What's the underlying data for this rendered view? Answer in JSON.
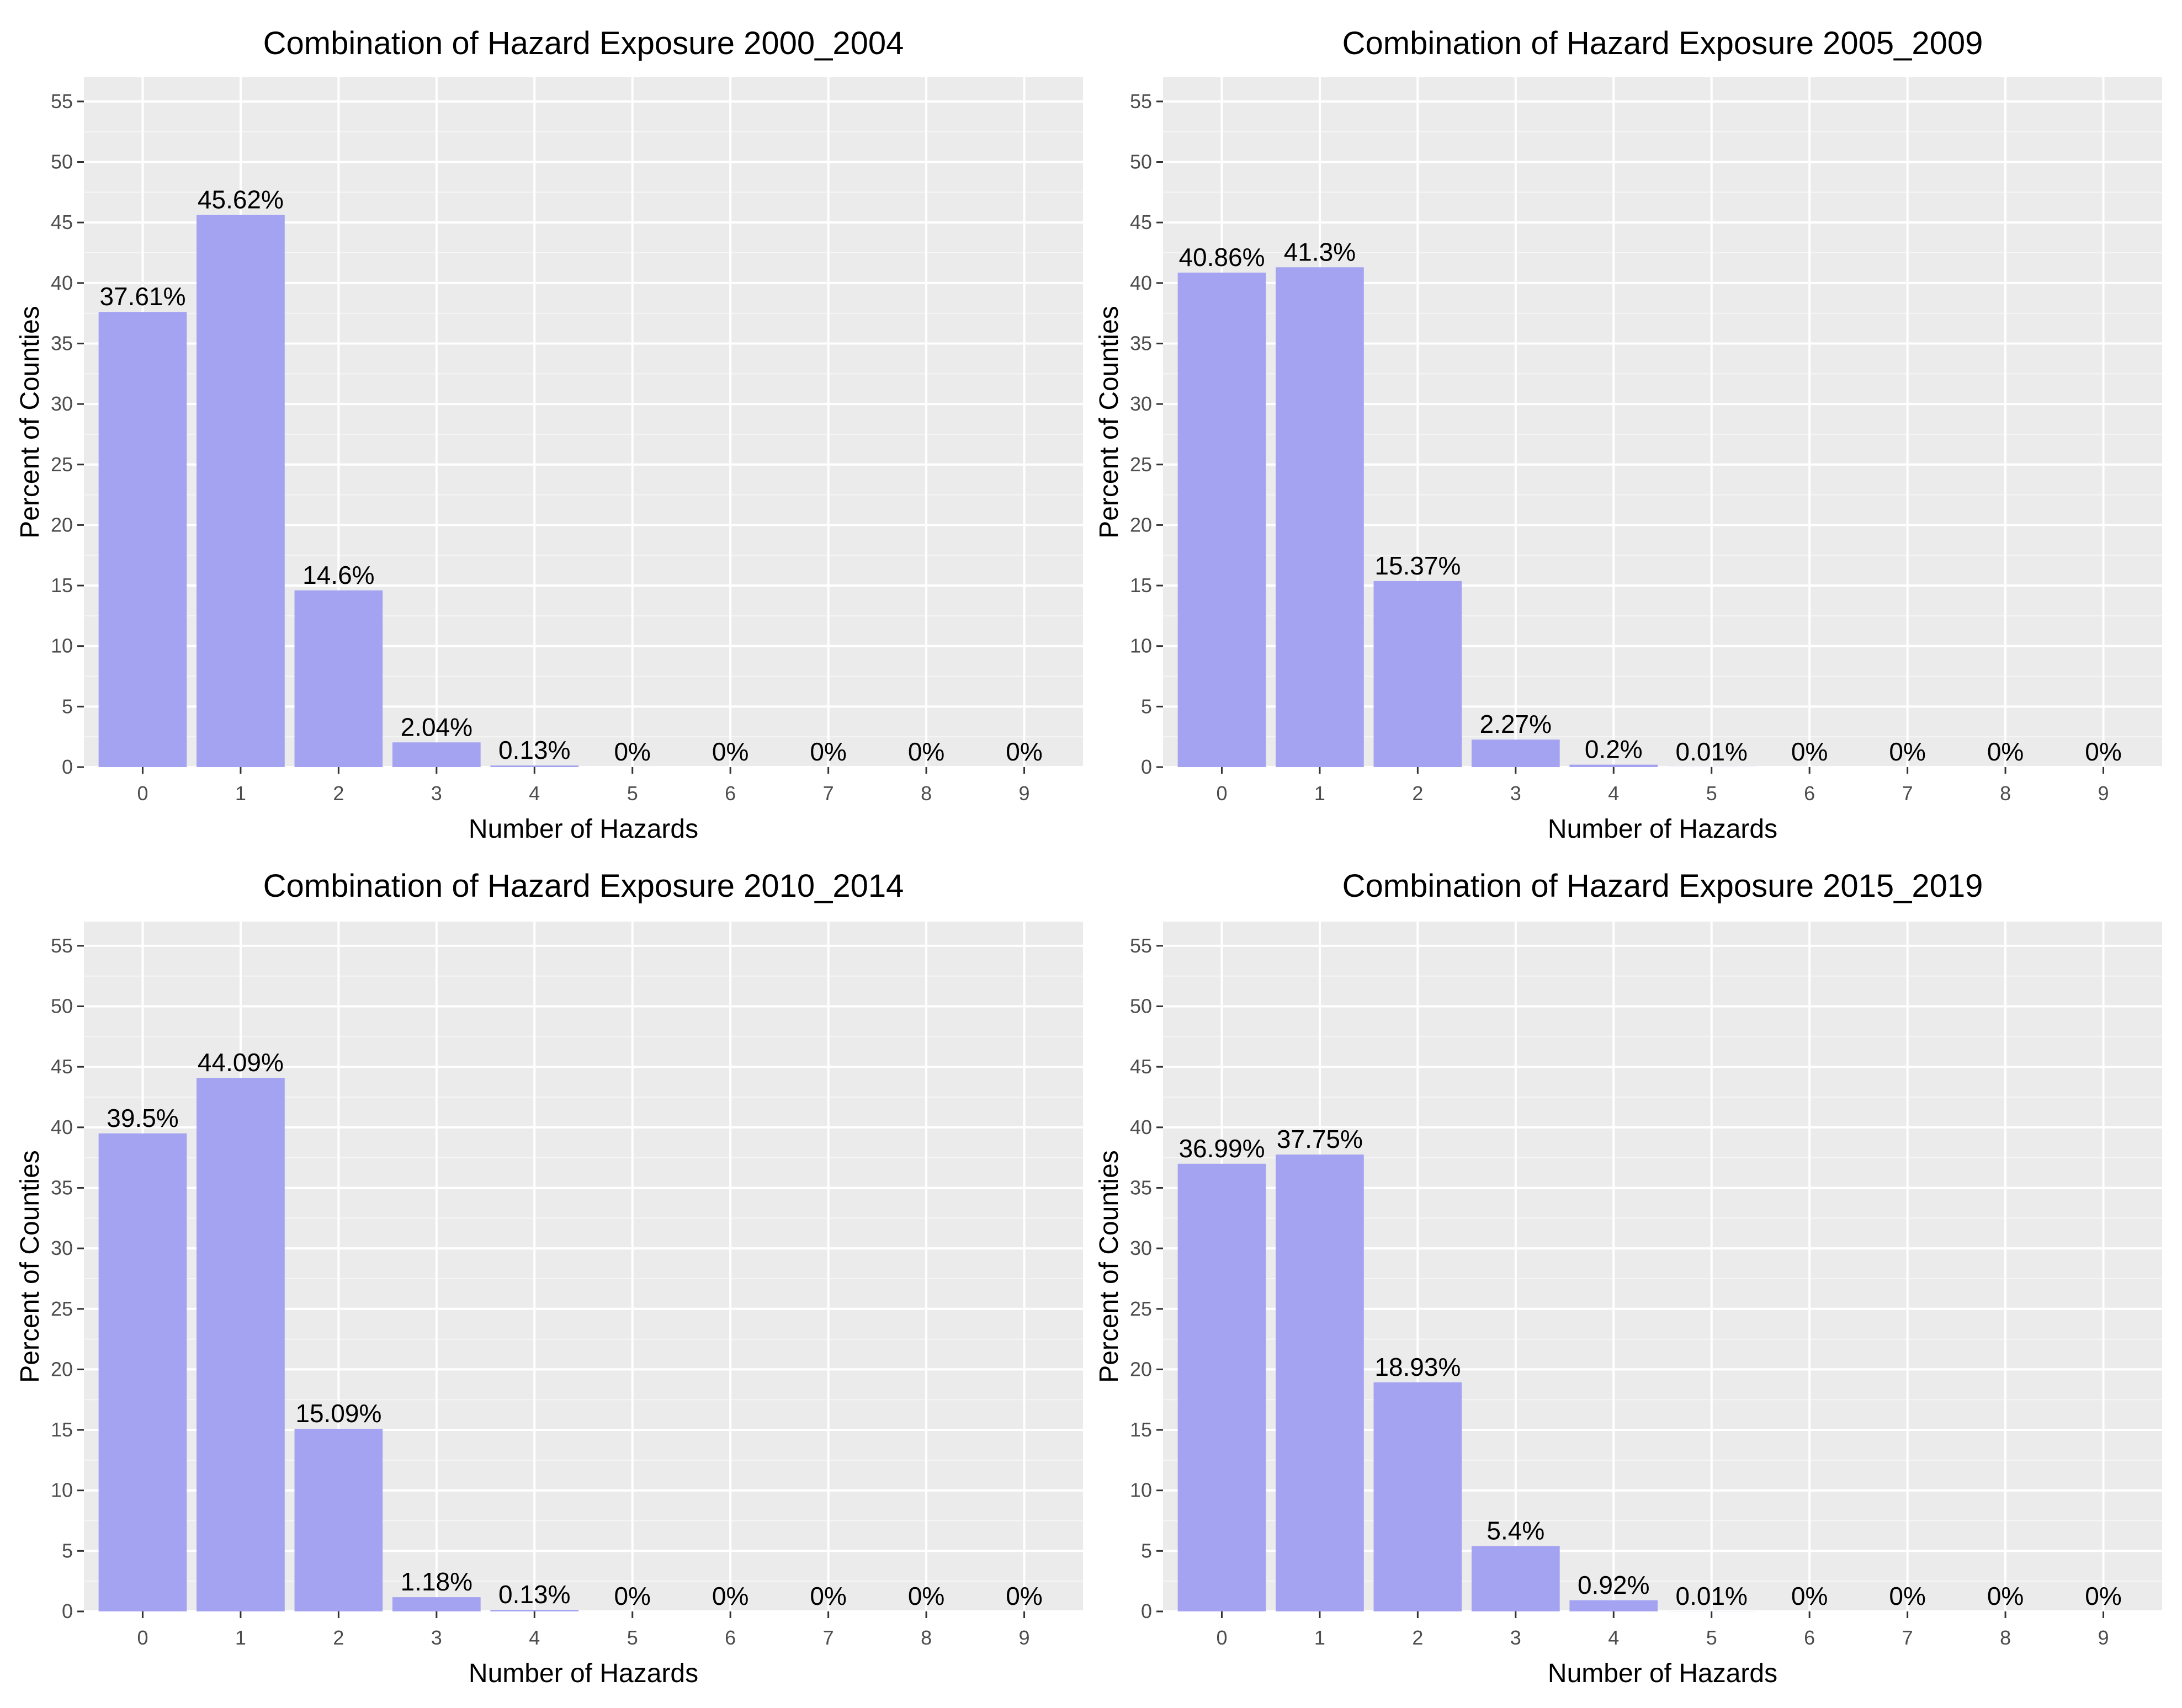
{
  "colors": {
    "panel_background": "#ebebeb",
    "grid_major": "#ffffff",
    "grid_minor": "#f5f5f5",
    "bar_fill": "#a3a3f2",
    "tick_color": "#333333"
  },
  "chart_data": [
    {
      "type": "bar",
      "title": "Combination of Hazard Exposure 2000_2004",
      "xlabel": "Number of Hazards",
      "ylabel": "Percent of Counties",
      "categories": [
        "0",
        "1",
        "2",
        "3",
        "4",
        "5",
        "6",
        "7",
        "8",
        "9"
      ],
      "values": [
        37.61,
        45.62,
        14.6,
        2.04,
        0.13,
        0,
        0,
        0,
        0,
        0
      ],
      "labels": [
        "37.61%",
        "45.62%",
        "14.6%",
        "2.04%",
        "0.13%",
        "0%",
        "0%",
        "0%",
        "0%",
        "0%"
      ],
      "ylim": [
        0,
        57
      ],
      "yticks": [
        0,
        5,
        10,
        15,
        20,
        25,
        30,
        35,
        40,
        45,
        50,
        55
      ],
      "ytick_labels": [
        "0",
        "5",
        "10",
        "15",
        "20",
        "25",
        "30",
        "35",
        "40",
        "45",
        "50",
        "55"
      ],
      "grid": true,
      "legend": "none"
    },
    {
      "type": "bar",
      "title": "Combination of Hazard Exposure 2005_2009",
      "xlabel": "Number of Hazards",
      "ylabel": "Percent of Counties",
      "categories": [
        "0",
        "1",
        "2",
        "3",
        "4",
        "5",
        "6",
        "7",
        "8",
        "9"
      ],
      "values": [
        40.86,
        41.3,
        15.37,
        2.27,
        0.2,
        0.01,
        0,
        0,
        0,
        0
      ],
      "labels": [
        "40.86%",
        "41.3%",
        "15.37%",
        "2.27%",
        "0.2%",
        "0.01%",
        "0%",
        "0%",
        "0%",
        "0%"
      ],
      "ylim": [
        0,
        57
      ],
      "yticks": [
        0,
        5,
        10,
        15,
        20,
        25,
        30,
        35,
        40,
        45,
        50,
        55
      ],
      "ytick_labels": [
        "0",
        "5",
        "10",
        "15",
        "20",
        "25",
        "30",
        "35",
        "40",
        "45",
        "50",
        "55"
      ],
      "grid": true,
      "legend": "none"
    },
    {
      "type": "bar",
      "title": "Combination of Hazard Exposure 2010_2014",
      "xlabel": "Number of Hazards",
      "ylabel": "Percent of Counties",
      "categories": [
        "0",
        "1",
        "2",
        "3",
        "4",
        "5",
        "6",
        "7",
        "8",
        "9"
      ],
      "values": [
        39.5,
        44.09,
        15.09,
        1.18,
        0.13,
        0,
        0,
        0,
        0,
        0
      ],
      "labels": [
        "39.5%",
        "44.09%",
        "15.09%",
        "1.18%",
        "0.13%",
        "0%",
        "0%",
        "0%",
        "0%",
        "0%"
      ],
      "ylim": [
        0,
        57
      ],
      "yticks": [
        0,
        5,
        10,
        15,
        20,
        25,
        30,
        35,
        40,
        45,
        50,
        55
      ],
      "ytick_labels": [
        "0",
        "5",
        "10",
        "15",
        "20",
        "25",
        "30",
        "35",
        "40",
        "45",
        "50",
        "55"
      ],
      "grid": true,
      "legend": "none"
    },
    {
      "type": "bar",
      "title": "Combination of Hazard Exposure 2015_2019",
      "xlabel": "Number of Hazards",
      "ylabel": "Percent of Counties",
      "categories": [
        "0",
        "1",
        "2",
        "3",
        "4",
        "5",
        "6",
        "7",
        "8",
        "9"
      ],
      "values": [
        36.99,
        37.75,
        18.93,
        5.4,
        0.92,
        0.01,
        0,
        0,
        0,
        0
      ],
      "labels": [
        "36.99%",
        "37.75%",
        "18.93%",
        "5.4%",
        "0.92%",
        "0.01%",
        "0%",
        "0%",
        "0%",
        "0%"
      ],
      "ylim": [
        0,
        57
      ],
      "yticks": [
        0,
        5,
        10,
        15,
        20,
        25,
        30,
        35,
        40,
        45,
        50,
        55
      ],
      "ytick_labels": [
        "0",
        "5",
        "10",
        "15",
        "20",
        "25",
        "30",
        "35",
        "40",
        "45",
        "50",
        "55"
      ],
      "grid": true,
      "legend": "none"
    }
  ]
}
